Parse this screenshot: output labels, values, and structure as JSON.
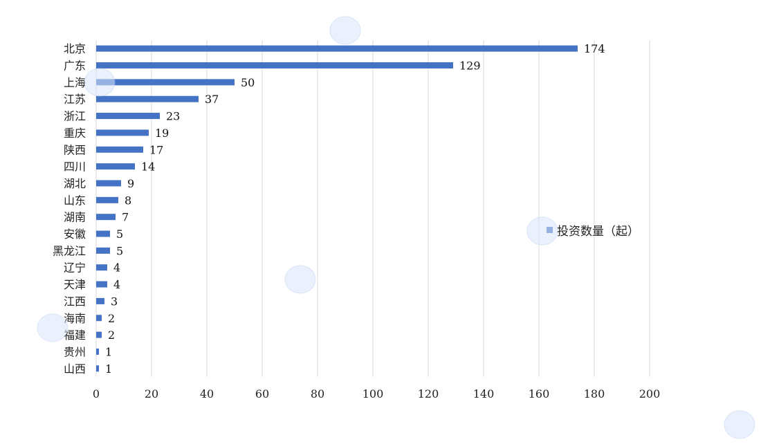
{
  "chart_data": {
    "type": "bar",
    "orientation": "horizontal",
    "categories": [
      "北京",
      "广东",
      "上海",
      "江苏",
      "浙江",
      "重庆",
      "陕西",
      "四川",
      "湖北",
      "山东",
      "湖南",
      "安徽",
      "黑龙江",
      "辽宁",
      "天津",
      "江西",
      "海南",
      "福建",
      "贵州",
      "山西"
    ],
    "series": [
      {
        "name": "投资数量（起）",
        "values": [
          174,
          129,
          50,
          37,
          23,
          19,
          17,
          14,
          9,
          8,
          7,
          5,
          5,
          4,
          4,
          3,
          2,
          2,
          1,
          1
        ]
      }
    ],
    "xlim": [
      0,
      200
    ],
    "xticks": [
      0,
      20,
      40,
      60,
      80,
      100,
      120,
      140,
      160,
      180,
      200
    ],
    "grid": "vertical",
    "legend_position": "right",
    "bar_color": "#4472C4"
  }
}
